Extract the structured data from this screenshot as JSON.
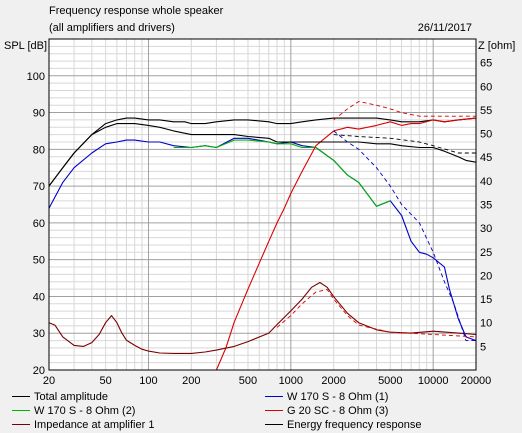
{
  "chart_data": {
    "type": "line",
    "title": "Frequency response whole speaker",
    "subtitle": "(all amplifiers and drivers)",
    "date": "26/11/2017",
    "left_axis": {
      "label": "SPL [dB]",
      "min": 20,
      "max": 110,
      "ticks": [
        20,
        30,
        40,
        50,
        60,
        70,
        80,
        90,
        100
      ]
    },
    "right_axis": {
      "label": "Z [ohm]",
      "min": 0,
      "max": 70,
      "ticks": [
        5,
        10,
        15,
        20,
        25,
        30,
        35,
        40,
        45,
        50,
        55,
        60,
        65
      ]
    },
    "x_axis": {
      "scale": "log",
      "min": 20,
      "max": 20000,
      "tick_labels": [
        "20",
        "50",
        "100",
        "200",
        "500",
        "1000",
        "2000",
        "5000",
        "10000",
        "20000"
      ]
    },
    "grid": true,
    "series": [
      {
        "name": "Total amplitude",
        "color": "#000000",
        "axis": "left",
        "style": "solid",
        "x": [
          20,
          25,
          30,
          40,
          50,
          60,
          70,
          80,
          100,
          120,
          150,
          180,
          200,
          250,
          300,
          400,
          500,
          700,
          800,
          1000,
          1200,
          1500,
          2000,
          2500,
          3000,
          4000,
          5000,
          6000,
          8000,
          10000,
          12000,
          15000,
          20000
        ],
        "y": [
          70,
          75,
          79,
          84,
          87,
          88,
          88.5,
          88.5,
          88,
          88,
          87.5,
          87.5,
          87,
          87,
          87.5,
          88,
          88,
          87.5,
          87,
          87,
          87.5,
          88,
          88.5,
          88.5,
          88.5,
          88.5,
          88,
          87.5,
          87.5,
          88,
          87.5,
          88,
          88.5
        ]
      },
      {
        "name": "W 170 S - 8 Ohm (1)",
        "color": "#0000c8",
        "axis": "left",
        "style": "solid",
        "x": [
          20,
          25,
          30,
          40,
          50,
          60,
          70,
          80,
          100,
          120,
          150,
          200,
          250,
          300,
          400,
          500,
          700,
          800,
          1000,
          1200,
          1500,
          2000,
          2500,
          3000,
          4000,
          5000,
          6000,
          7000,
          8000,
          9000,
          10000,
          12000,
          13000,
          15000,
          17000,
          20000
        ],
        "y": [
          64,
          71,
          75,
          79,
          81.5,
          82,
          82.5,
          82.5,
          82,
          82,
          81,
          80.5,
          81,
          80.5,
          83,
          83,
          82,
          81.5,
          82,
          81,
          80.5,
          77,
          73,
          71,
          64.5,
          66,
          62,
          55,
          52,
          51.5,
          50.5,
          48,
          42,
          34,
          29,
          28
        ]
      },
      {
        "name": "W 170 S - 8 Ohm (2)",
        "color": "#00b400",
        "axis": "left",
        "style": "solid",
        "x": [
          150,
          200,
          250,
          300,
          400,
          500,
          700,
          800,
          1000,
          1200,
          1500,
          2000,
          2500,
          3000,
          4000,
          5000
        ],
        "y": [
          80.5,
          80.5,
          81,
          80.5,
          82.5,
          82.5,
          82,
          81.5,
          81.5,
          80.5,
          80.5,
          77,
          73,
          71,
          64.5,
          66
        ]
      },
      {
        "name": "G 20 SC - 8 Ohm (3)",
        "color": "#dc0000",
        "axis": "left",
        "style": "solid",
        "x": [
          300,
          350,
          400,
          500,
          600,
          700,
          800,
          900,
          1000,
          1200,
          1500,
          2000,
          2500,
          3000,
          4000,
          5000,
          6000,
          7000,
          8000,
          10000,
          12000,
          15000,
          20000
        ],
        "y": [
          20,
          26,
          33,
          42,
          49,
          55,
          60,
          64,
          68,
          74,
          81,
          85,
          86,
          85.5,
          86.5,
          87.5,
          86.5,
          87,
          87,
          88,
          87.5,
          88,
          88.5
        ]
      },
      {
        "name": "Impedance at amplifier 1",
        "color": "#780000",
        "axis": "right",
        "style": "solid",
        "x": [
          20,
          22,
          25,
          30,
          35,
          40,
          45,
          50,
          55,
          60,
          65,
          70,
          80,
          90,
          100,
          120,
          150,
          200,
          250,
          300,
          400,
          500,
          700,
          800,
          1000,
          1200,
          1400,
          1600,
          1800,
          2000,
          2500,
          3000,
          4000,
          5000,
          7000,
          10000,
          15000,
          20000
        ],
        "y": [
          10,
          9.5,
          7,
          5.2,
          5,
          5.8,
          7.5,
          10,
          11.5,
          10,
          7.8,
          6.3,
          5.2,
          4.4,
          4,
          3.6,
          3.5,
          3.5,
          3.8,
          4.2,
          5,
          6,
          7.8,
          9.6,
          12.5,
          15,
          17.5,
          18.5,
          17.5,
          15.5,
          12,
          10,
          8.5,
          8,
          7.8,
          8.2,
          7.8,
          7.5
        ]
      },
      {
        "name": "Energy frequency response",
        "color": "#000000",
        "axis": "left",
        "style": "solid",
        "x": [
          20,
          25,
          30,
          40,
          50,
          60,
          70,
          80,
          100,
          120,
          150,
          200,
          250,
          300,
          400,
          500,
          700,
          800,
          1000,
          1200,
          1500,
          2000,
          2500,
          3000,
          4000,
          5000,
          6000,
          8000,
          10000,
          12000,
          15000,
          17000,
          20000
        ],
        "y": [
          70,
          75,
          79,
          84,
          86,
          87,
          87,
          87,
          86.5,
          86,
          85,
          84,
          84,
          84,
          84,
          83.5,
          83,
          82,
          82,
          82,
          82,
          82,
          82,
          82,
          81.5,
          81.5,
          81,
          80.5,
          80.5,
          79.5,
          78,
          77,
          76.5
        ]
      },
      {
        "name": "",
        "color": "#0000c8",
        "axis": "left",
        "style": "dashed",
        "x": [
          2000,
          2500,
          3000,
          4000,
          5000,
          6000,
          8000,
          10000,
          12000,
          14000,
          17000,
          20000
        ],
        "y": [
          85,
          82,
          80,
          75,
          70,
          65,
          60,
          52,
          44,
          38,
          28,
          28
        ]
      },
      {
        "name": "",
        "color": "#dc0000",
        "axis": "left",
        "style": "dashed",
        "x": [
          2000,
          2500,
          3000,
          4000,
          5000,
          6000,
          8000,
          10000,
          15000,
          20000
        ],
        "y": [
          88,
          91,
          93,
          92,
          91,
          90,
          89,
          89,
          89,
          89
        ]
      },
      {
        "name": "",
        "color": "#dc0000",
        "axis": "right",
        "style": "dashed",
        "x": [
          800,
          1000,
          1200,
          1500,
          1800,
          2000,
          2500,
          3000,
          5000,
          10000,
          20000
        ],
        "y": [
          9,
          11.5,
          14,
          16.5,
          17,
          15,
          11.5,
          9.5,
          8,
          7.5,
          7
        ]
      },
      {
        "name": "",
        "color": "#000000",
        "axis": "left",
        "style": "dashed",
        "x": [
          2000,
          3000,
          5000,
          8000,
          10000,
          15000,
          20000
        ],
        "y": [
          84,
          83.5,
          83,
          82,
          81,
          79,
          79
        ]
      }
    ],
    "legend": {
      "placement": "bottom",
      "items": [
        {
          "label": "Total amplitude",
          "color": "#000000"
        },
        {
          "label": "W 170 S - 8 Ohm (1)",
          "color": "#0000c8"
        },
        {
          "label": "W 170 S - 8 Ohm (2)",
          "color": "#00b400"
        },
        {
          "label": "G 20 SC - 8 Ohm (3)",
          "color": "#dc0000"
        },
        {
          "label": "Impedance at amplifier 1",
          "color": "#780000"
        },
        {
          "label": "Energy frequency response",
          "color": "#000000"
        }
      ]
    }
  }
}
